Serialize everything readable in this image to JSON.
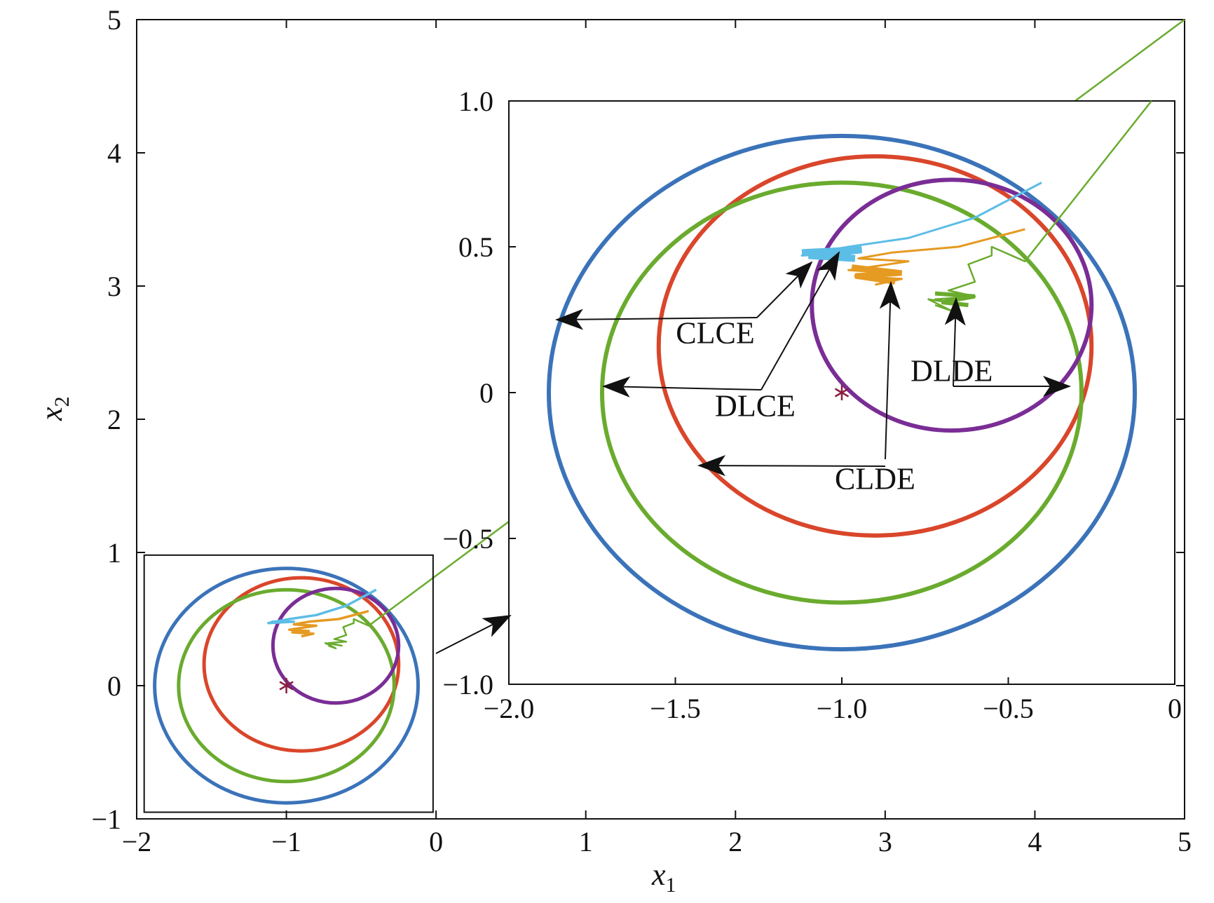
{
  "chart_data": {
    "type": "line",
    "title": "",
    "xlabel": "x",
    "xlabel_sub": "1",
    "ylabel": "x",
    "ylabel_sub": "2",
    "xlim": [
      -2,
      5
    ],
    "ylim": [
      -1,
      5
    ],
    "xticks": [
      -2,
      -1,
      0,
      1,
      2,
      3,
      4,
      5
    ],
    "yticks": [
      -1,
      0,
      1,
      2,
      3,
      4,
      5
    ],
    "xtick_labels": [
      "−2",
      "−1",
      "0",
      "1",
      "2",
      "3",
      "4",
      "5"
    ],
    "ytick_labels": [
      "−1",
      "0",
      "1",
      "2",
      "3",
      "4",
      "5"
    ],
    "grid": false,
    "legend": "none",
    "colors": {
      "blue": "#3b73b9",
      "red": "#d9462b",
      "green": "#6aab2e",
      "purple": "#7a2d95",
      "cyan": "#5cbde6",
      "orange": "#e59a22",
      "star": "#8b1e3f",
      "frame": "#111111"
    },
    "circles": [
      {
        "color": "blue",
        "center": [
          -1.0,
          0.0
        ],
        "radius": [
          0.88,
          0.88
        ]
      },
      {
        "color": "red",
        "center": [
          -0.9,
          0.16
        ],
        "radius": [
          0.65,
          0.65
        ]
      },
      {
        "color": "green",
        "center": [
          -1.0,
          0.0
        ],
        "radius": [
          0.72,
          0.72
        ]
      },
      {
        "color": "purple",
        "center": [
          -0.67,
          0.3
        ],
        "radius": [
          0.42,
          0.43
        ]
      }
    ],
    "trajectories": [
      {
        "color": "green",
        "points": [
          [
            5.0,
            5.0
          ],
          [
            -0.45,
            0.45
          ],
          [
            -0.55,
            0.5
          ],
          [
            -0.55,
            0.47
          ],
          [
            -0.62,
            0.44
          ],
          [
            -0.6,
            0.38
          ],
          [
            -0.68,
            0.35
          ],
          [
            -0.6,
            0.33
          ],
          [
            -0.72,
            0.32
          ],
          [
            -0.63,
            0.3
          ],
          [
            -0.74,
            0.32
          ],
          [
            -0.67,
            0.28
          ],
          [
            -0.72,
            0.3
          ]
        ]
      },
      {
        "color": "cyan",
        "points": [
          [
            -0.4,
            0.72
          ],
          [
            -0.6,
            0.6
          ],
          [
            -0.8,
            0.53
          ],
          [
            -0.98,
            0.5
          ],
          [
            -1.08,
            0.48
          ],
          [
            -1.12,
            0.47
          ],
          [
            -0.95,
            0.48
          ],
          [
            -1.1,
            0.48
          ]
        ]
      },
      {
        "color": "orange",
        "points": [
          [
            -0.45,
            0.56
          ],
          [
            -0.65,
            0.5
          ],
          [
            -0.85,
            0.48
          ],
          [
            -0.95,
            0.46
          ],
          [
            -0.8,
            0.45
          ],
          [
            -0.98,
            0.42
          ],
          [
            -0.85,
            0.41
          ],
          [
            -0.96,
            0.4
          ],
          [
            -0.82,
            0.39
          ],
          [
            -0.9,
            0.37
          ]
        ]
      }
    ],
    "equilibrium_star": [
      -1.0,
      0.0
    ],
    "inset": {
      "xlim": [
        -2.0,
        0.0
      ],
      "ylim": [
        -1.0,
        1.0
      ],
      "xtick_labels": [
        "−2.0",
        "−1.5",
        "−1.0",
        "−0.5",
        "0"
      ],
      "xticks": [
        -2.0,
        -1.5,
        -1.0,
        -0.5,
        0.0
      ],
      "ytick_labels": [
        "−1.0",
        "−0.5",
        "0",
        "0.5",
        "1.0"
      ],
      "yticks": [
        -1.0,
        -0.5,
        0.0,
        0.5,
        1.0
      ]
    },
    "annotations": [
      {
        "text": "CLCE",
        "at": [
          -1.38,
          0.17
        ]
      },
      {
        "text": "DLCE",
        "at": [
          -1.26,
          -0.08
        ]
      },
      {
        "text": "DLDE",
        "at": [
          -0.67,
          0.04
        ]
      },
      {
        "text": "CLDE",
        "at": [
          -0.9,
          -0.33
        ]
      }
    ]
  }
}
